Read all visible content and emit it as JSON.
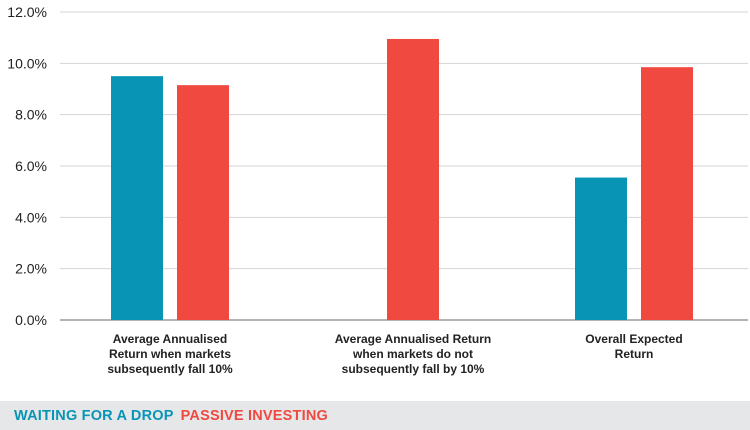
{
  "chart_data": {
    "type": "bar",
    "categories": [
      [
        "Average Annualised",
        "Return when markets",
        "subsequently fall 10%"
      ],
      [
        "Average Annualised Return",
        "when markets do not",
        "subsequently fall by 10%"
      ],
      [
        "Overall Expected",
        "Return"
      ]
    ],
    "series": [
      {
        "name": "WAITING FOR A DROP",
        "color": "#0895b5",
        "values": [
          9.5,
          null,
          5.55
        ]
      },
      {
        "name": "PASSIVE INVESTING",
        "color": "#f04940",
        "values": [
          9.15,
          10.95,
          9.85
        ]
      }
    ],
    "ylim": [
      0,
      12
    ],
    "yticks": [
      0,
      2,
      4,
      6,
      8,
      10,
      12
    ],
    "ytick_labels": [
      "0.0%",
      "2.0%",
      "4.0%",
      "6.0%",
      "8.0%",
      "10.0%",
      "12.0%"
    ],
    "grid": true,
    "legend_position": "bottom-left",
    "title": "",
    "xlabel": "",
    "ylabel": ""
  }
}
